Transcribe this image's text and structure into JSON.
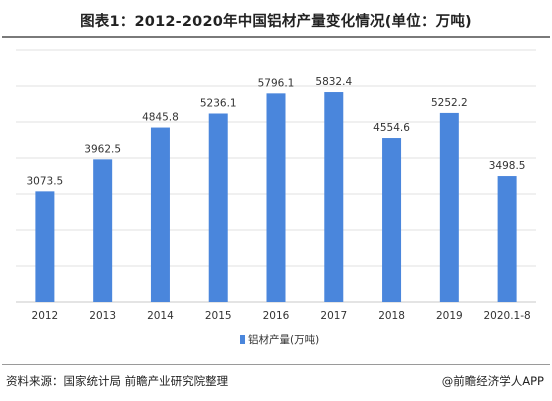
{
  "header": {
    "title": "图表1：2012-2020年中国铝材产量变化情况(单位：万吨)"
  },
  "footer": {
    "source": "资料来源：国家统计局 前瞻产业研究院整理",
    "brand": "@前瞻经济学人APP"
  },
  "colors": {
    "bar": "#4a86dc",
    "grid": "#e0e0e0",
    "axis": "#c8c8c8"
  },
  "chart_data": {
    "type": "bar",
    "title": "图表1：2012-2020年中国铝材产量变化情况(单位：万吨)",
    "categories": [
      "2012",
      "2013",
      "2014",
      "2015",
      "2016",
      "2017",
      "2018",
      "2019",
      "2020.1-8"
    ],
    "series": [
      {
        "name": "铝材产量(万吨)",
        "values": [
          3073.5,
          3962.5,
          4845.8,
          5236.1,
          5796.1,
          5832.4,
          4554.6,
          5252.2,
          3498.5
        ],
        "labels": [
          "3073.5",
          "3962.5",
          "4845.8",
          "5236.1",
          "5796.1",
          "5832.4",
          "4554.6",
          "5252.2",
          "3498.5"
        ]
      }
    ],
    "ylim": [
      0,
      7000
    ],
    "y_axis_labels_visible": false,
    "grid": true,
    "legend_position": "bottom-center"
  }
}
